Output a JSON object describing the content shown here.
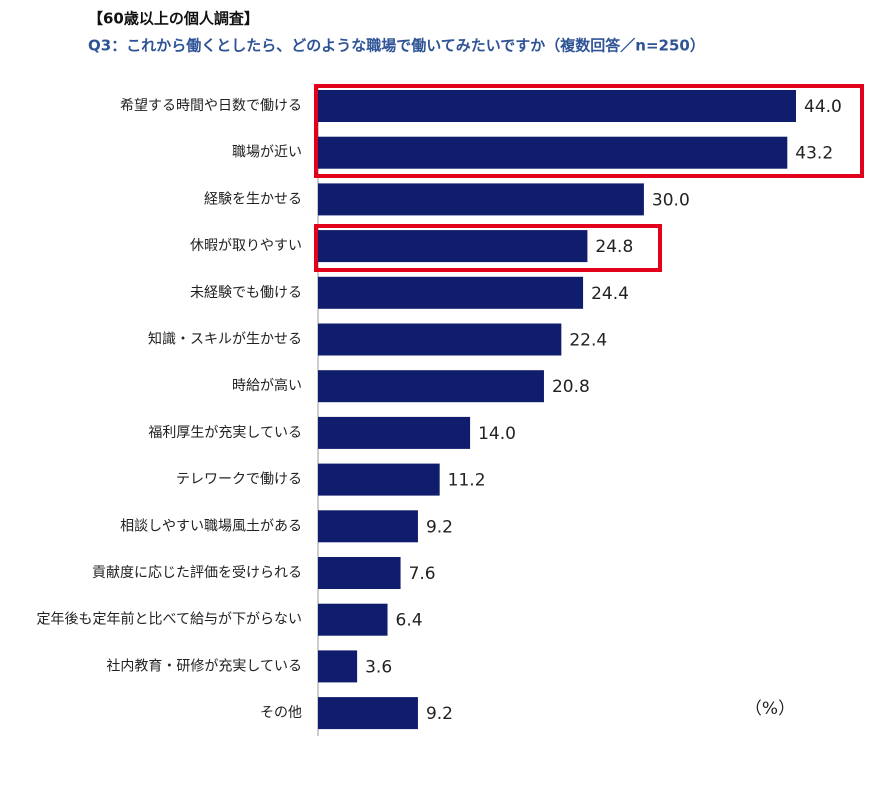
{
  "chart_data": {
    "type": "barh",
    "title": "【60歳以上の個人調査】",
    "subtitle": "Q3：これから働くとしたら、どのような職場で働いてみたいですか（複数回答／n=250）",
    "unit_label": "（%）",
    "categories": [
      "希望する時間や日数で働ける",
      "職場が近い",
      "経験を生かせる",
      "休暇が取りやすい",
      "未経験でも働ける",
      "知識・スキルが生かせる",
      "時給が高い",
      "福利厚生が充実している",
      "テレワークで働ける",
      "相談しやすい職場風土がある",
      "貢献度に応じた評価を受けられる",
      "定年後も定年前と比べて給与が下がらない",
      "社内教育・研修が充実している",
      "その他"
    ],
    "values": [
      44.0,
      43.2,
      30.0,
      24.8,
      24.4,
      22.4,
      20.8,
      14.0,
      11.2,
      9.2,
      7.6,
      6.4,
      3.6,
      9.2
    ],
    "value_labels": [
      "44.0",
      "43.2",
      "30.0",
      "24.8",
      "24.4",
      "22.4",
      "20.8",
      "14.0",
      "11.2",
      "9.2",
      "7.6",
      "6.4",
      "3.6",
      "9.2"
    ],
    "color": "#101c6c"
  }
}
